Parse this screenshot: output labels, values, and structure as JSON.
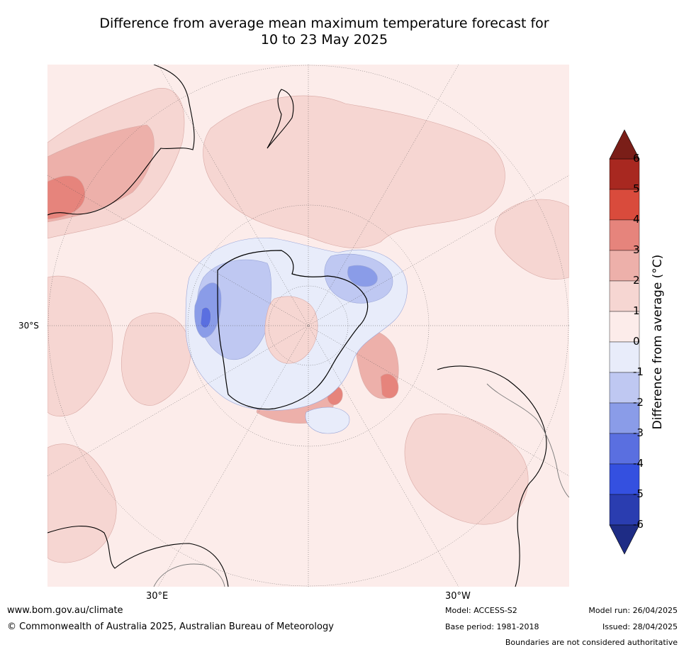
{
  "title": {
    "line1": "Difference from average mean maximum temperature forecast for",
    "line2": "10 to 23 May 2025"
  },
  "map": {
    "projection": "south-polar-stereographic",
    "lat_label": "30°S",
    "lon_labels": {
      "east": "30°E",
      "west": "30°W"
    },
    "anomaly_colors": {
      "warm_1_2": "#f6d6d2",
      "warm_2_3": "#edb0aa",
      "warm_3_4": "#e6847c",
      "warm_4_5": "#d9493c",
      "cool_0_-1": "#e8ecfa",
      "cool_-1_-2": "#bfc8f2",
      "cool_-2_-3": "#8a9ce8",
      "cool_-3_-4": "#5a6fe0"
    }
  },
  "colorbar": {
    "label_main": "Difference from average (",
    "label_unit": "°C",
    "label_close": ")",
    "ticks": [
      "6",
      "5",
      "4",
      "3",
      "2",
      "1",
      "0",
      "-1",
      "-2",
      "-3",
      "-4",
      "-5",
      "-6"
    ],
    "colors": [
      "#a82820",
      "#d94b3c",
      "#e6847c",
      "#edb0aa",
      "#f6d6d2",
      "#fcecea",
      "#e8ecfa",
      "#bfc8f2",
      "#8a9ce8",
      "#5a6fe0",
      "#3450e0",
      "#2a3db0"
    ],
    "over_color": "#7a1e18",
    "under_color": "#1e2c85"
  },
  "footer": {
    "website": "www.bom.gov.au/climate",
    "copyright": "© Commonwealth of Australia 2025, Australian Bureau of Meteorology",
    "model": "Model: ACCESS-S2",
    "base_period": "Base period: 1981-2018",
    "model_run": "Model run: 26/04/2025",
    "issued": "Issued: 28/04/2025",
    "disclaimer": "Boundaries are not considered authoritative"
  }
}
